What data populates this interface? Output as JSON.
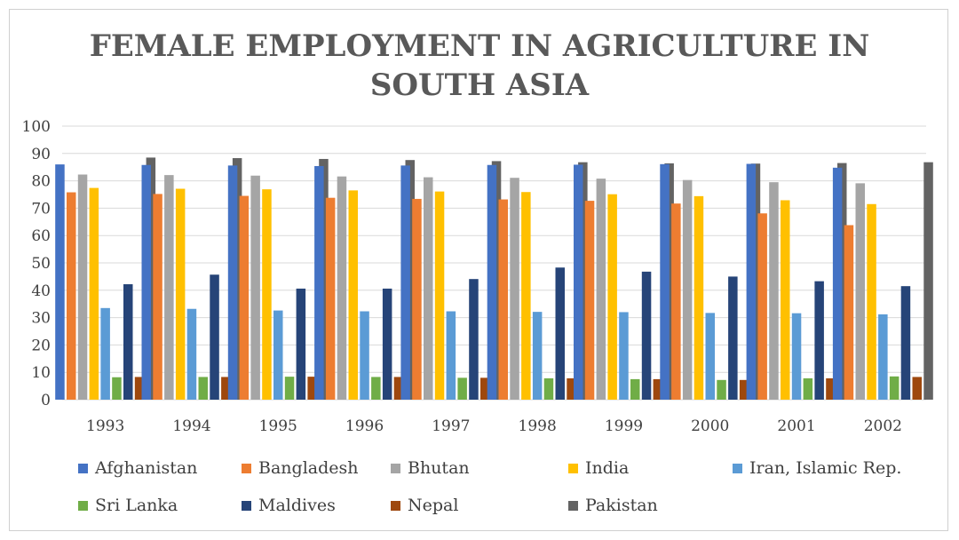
{
  "chart_data": {
    "type": "bar",
    "title": "FEMALE EMPLOYMENT IN AGRICULTURE IN SOUTH ASIA",
    "title_lines": [
      "FEMALE EMPLOYMENT IN AGRICULTURE IN",
      "SOUTH ASIA"
    ],
    "categories": [
      "1993",
      "1994",
      "1995",
      "1996",
      "1997",
      "1998",
      "1999",
      "2000",
      "2001",
      "2002"
    ],
    "ylim": [
      0,
      100
    ],
    "yticks": [
      0,
      10,
      20,
      30,
      40,
      50,
      60,
      70,
      80,
      90,
      100
    ],
    "grid": true,
    "legend_position": "bottom",
    "series": [
      {
        "name": "Afghanistan",
        "color": "#4472C4",
        "values": [
          86,
          85.8,
          85.6,
          85.4,
          85.6,
          85.8,
          85.9,
          86.1,
          86.2,
          84.8
        ]
      },
      {
        "name": "Bangladesh",
        "color": "#ED7D31",
        "values": [
          75.8,
          75.2,
          74.5,
          73.8,
          73.4,
          73.2,
          72.7,
          71.7,
          68.1,
          63.8
        ]
      },
      {
        "name": "Bhutan",
        "color": "#A5A5A5",
        "values": [
          82.3,
          82.1,
          81.9,
          81.6,
          81.3,
          81.1,
          80.8,
          80.3,
          79.5,
          79.1
        ]
      },
      {
        "name": "India",
        "color": "#FFC000",
        "values": [
          77.4,
          77.1,
          76.9,
          76.5,
          76.1,
          75.9,
          75.1,
          74.4,
          72.9,
          71.5
        ]
      },
      {
        "name": "Iran, Islamic Rep.",
        "color": "#5B9BD5",
        "values": [
          33.5,
          33.2,
          32.6,
          32.3,
          32.3,
          32.1,
          32,
          31.7,
          31.6,
          31.2
        ]
      },
      {
        "name": "Sri Lanka",
        "color": "#70AD47",
        "values": [
          8.2,
          8.3,
          8.4,
          8.3,
          8,
          7.8,
          7.5,
          7.2,
          7.8,
          8.5
        ]
      },
      {
        "name": "Maldives",
        "color": "#264478",
        "values": [
          42.2,
          45.7,
          40.6,
          40.6,
          44.1,
          48.3,
          46.8,
          45,
          43.3,
          41.5
        ]
      },
      {
        "name": "Nepal",
        "color": "#9E480E",
        "values": [
          8.3,
          8.3,
          8.4,
          8.3,
          8,
          7.8,
          7.5,
          7.2,
          7.8,
          8.3
        ]
      },
      {
        "name": "Pakistan",
        "color": "#636363",
        "values": [
          88.5,
          88.3,
          88,
          87.6,
          87.2,
          86.8,
          86.4,
          86.3,
          86.5,
          86.8
        ]
      }
    ]
  }
}
